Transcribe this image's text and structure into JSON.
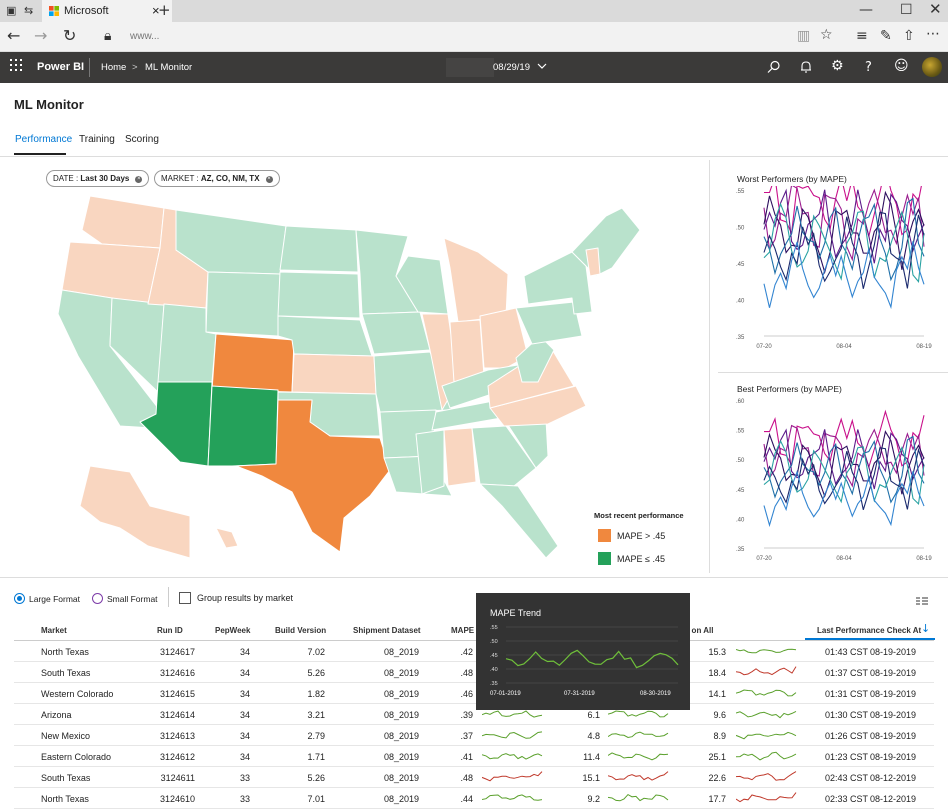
{
  "browser": {
    "tab_title": "Microsoft",
    "address": "www...",
    "new_tab_symbol": "+",
    "close_symbol": "×"
  },
  "header": {
    "app_name": "Power BI",
    "breadcrumb_home": "Home",
    "breadcrumb_sep": ">",
    "breadcrumb_page": "ML Monitor",
    "date": "08/29/19"
  },
  "page": {
    "title": "ML Monitor",
    "tabs": [
      {
        "label": "Performance",
        "active": true
      },
      {
        "label": "Training",
        "active": false
      },
      {
        "label": "Scoring",
        "active": false
      }
    ]
  },
  "filters": [
    {
      "key": "DATE : ",
      "value": "Last 30 Days"
    },
    {
      "key": "MARKET : ",
      "value": "AZ, CO, NM, TX"
    }
  ],
  "map": {
    "legend_title": "Most recent performance",
    "legend": [
      {
        "label": "MAPE > .45",
        "color": "#f0883e"
      },
      {
        "label": "MAPE ≤ .45",
        "color": "#24a15a"
      }
    ],
    "colors": {
      "neutral_good": "#b9e2cc",
      "neutral_bad": "#f9d6c0",
      "bad": "#f0883e",
      "good": "#24a15a"
    }
  },
  "worst_chart": {
    "title": "Worst Performers (by MAPE)",
    "y_ticks": [
      ".55",
      ".50",
      ".45",
      ".40",
      ".35"
    ],
    "x_ticks": [
      "07-20",
      "08-04",
      "08-19"
    ]
  },
  "best_chart": {
    "title": "Best Performers (by MAPE)",
    "y_ticks": [
      ".60",
      ".55",
      ".50",
      ".45",
      ".40",
      ".35"
    ],
    "x_ticks": [
      "07-20",
      "08-04",
      "08-19"
    ]
  },
  "controls": {
    "large_format": "Large Format",
    "small_format": "Small Format",
    "group_by_market": "Group results by market"
  },
  "table": {
    "headers": {
      "market": "Market",
      "run_id": "Run ID",
      "pep_week": "PepWeek",
      "build_version": "Build Version",
      "shipment_dataset": "Shipment Dataset",
      "mape": "MAPE",
      "mse_on_all": "MSE on All",
      "last_check": "Last Performance Check At"
    },
    "rows": [
      {
        "market": "North Texas",
        "run_id": "3124617",
        "pep_week": "34",
        "build": "7.02",
        "dataset": "08_2019",
        "mape": ".42",
        "mid": "",
        "mse": "15.3",
        "time": "01:43 CST",
        "date": "08-19-2019",
        "mape_trend": "good",
        "mse_trend": "good"
      },
      {
        "market": "South Texas",
        "run_id": "3124616",
        "pep_week": "34",
        "build": "5.26",
        "dataset": "08_2019",
        "mape": ".48",
        "mid": "",
        "mse": "18.4",
        "time": "01:37 CST",
        "date": "08-19-2019",
        "mape_trend": "bad",
        "mse_trend": "bad"
      },
      {
        "market": "Western Colorado",
        "run_id": "3124615",
        "pep_week": "34",
        "build": "1.82",
        "dataset": "08_2019",
        "mape": ".46",
        "mid": "",
        "mse": "14.1",
        "time": "01:31 CST",
        "date": "08-19-2019",
        "mape_trend": "bad",
        "mse_trend": "good"
      },
      {
        "market": "Arizona",
        "run_id": "3124614",
        "pep_week": "34",
        "build": "3.21",
        "dataset": "08_2019",
        "mape": ".39",
        "mid": "6.1",
        "mse": "9.6",
        "time": "01:30 CST",
        "date": "08-19-2019",
        "mape_trend": "good",
        "mse_trend": "good"
      },
      {
        "market": "New Mexico",
        "run_id": "3124613",
        "pep_week": "34",
        "build": "2.79",
        "dataset": "08_2019",
        "mape": ".37",
        "mid": "4.8",
        "mse": "8.9",
        "time": "01:26 CST",
        "date": "08-19-2019",
        "mape_trend": "good",
        "mse_trend": "good"
      },
      {
        "market": "Eastern Colorado",
        "run_id": "3124612",
        "pep_week": "34",
        "build": "1.71",
        "dataset": "08_2019",
        "mape": ".41",
        "mid": "11.4",
        "mse": "25.1",
        "time": "01:23 CST",
        "date": "08-19-2019",
        "mape_trend": "good",
        "mse_trend": "good"
      },
      {
        "market": "South Texas",
        "run_id": "3124611",
        "pep_week": "33",
        "build": "5.26",
        "dataset": "08_2019",
        "mape": ".48",
        "mid": "15.1",
        "mse": "22.6",
        "time": "02:43 CST",
        "date": "08-12-2019",
        "mape_trend": "bad",
        "mse_trend": "bad"
      },
      {
        "market": "North Texas",
        "run_id": "3124610",
        "pep_week": "33",
        "build": "7.01",
        "dataset": "08_2019",
        "mape": ".44",
        "mid": "9.2",
        "mse": "17.7",
        "time": "02:33 CST",
        "date": "08-12-2019",
        "mape_trend": "good",
        "mse_trend": "bad"
      }
    ]
  },
  "tooltip": {
    "title": "MAPE Trend",
    "y_ticks": [
      ".55",
      ".50",
      ".45",
      ".40",
      ".35"
    ],
    "x_ticks": [
      "07-01-2019",
      "07-31-2019",
      "08-30-2019"
    ]
  }
}
